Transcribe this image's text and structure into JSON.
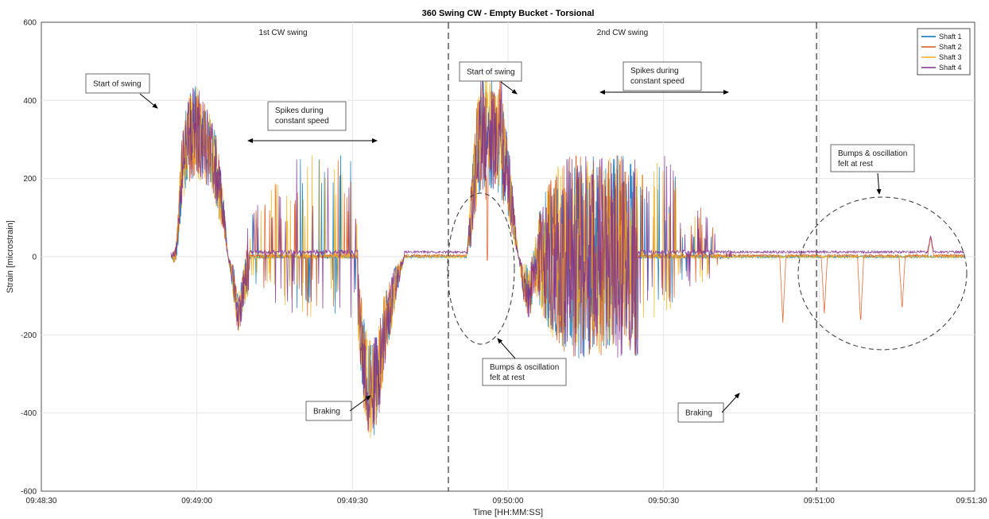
{
  "chart_data": {
    "type": "line",
    "title": "360 Swing CW - Empty Bucket - Torsional",
    "xlabel": "Time [HH:MM:SS]",
    "ylabel": "Strain [microstrain]",
    "x_ticks": [
      "09:48:30",
      "09:49:00",
      "09:49:30",
      "09:50:00",
      "09:50:30",
      "09:51:00",
      "09:51:30"
    ],
    "x_tick_seconds": [
      0,
      30,
      60,
      90,
      120,
      150,
      180
    ],
    "xlim_seconds": [
      0,
      180
    ],
    "ylim": [
      -600,
      600
    ],
    "y_ticks": [
      -600,
      -400,
      -200,
      0,
      200,
      400,
      600
    ],
    "grid": true,
    "legend_position": "top-right",
    "colors": [
      "#0072bd",
      "#d95319",
      "#edb120",
      "#7e2f8e"
    ],
    "series": [
      {
        "name": "Shaft 1",
        "color": "#0072bd"
      },
      {
        "name": "Shaft 2",
        "color": "#d95319"
      },
      {
        "name": "Shaft 3",
        "color": "#edb120"
      },
      {
        "name": "Shaft 4",
        "color": "#7e2f8e"
      }
    ],
    "envelope": {
      "t": [
        25,
        26,
        27,
        28,
        29,
        30,
        31,
        32,
        33,
        34,
        35,
        36,
        37,
        38,
        39,
        40,
        41,
        42,
        43,
        44,
        45,
        46,
        47,
        48,
        49,
        50,
        51,
        52,
        53,
        54,
        55,
        56,
        57,
        58,
        59,
        60,
        61,
        62,
        63,
        64,
        65,
        66,
        67,
        68,
        69,
        70,
        71,
        72,
        73,
        74,
        75,
        76,
        77,
        78,
        79,
        80,
        81,
        82,
        83,
        84,
        85,
        86,
        87,
        88,
        89,
        90,
        91,
        92,
        93,
        94,
        95,
        96,
        97,
        98,
        99,
        100,
        101,
        102,
        103,
        104,
        105,
        106,
        107,
        108,
        109,
        110,
        111,
        112,
        113,
        114,
        115,
        116,
        117,
        118,
        119,
        120,
        121,
        122,
        123,
        124,
        125,
        126,
        127,
        128,
        129,
        130,
        131,
        132,
        133,
        134,
        135,
        136,
        137,
        138,
        139,
        140,
        141,
        142,
        143,
        144,
        145,
        146,
        147,
        148,
        149,
        150,
        151,
        152,
        153,
        154,
        155,
        156,
        157,
        158,
        159,
        160,
        161,
        162,
        163,
        164,
        165,
        166,
        167,
        168,
        169,
        170,
        171,
        172,
        173,
        174,
        175,
        176,
        177,
        178
      ],
      "base": [
        0,
        0,
        200,
        290,
        310,
        320,
        300,
        280,
        250,
        200,
        120,
        0,
        -60,
        -150,
        -80,
        0,
        0,
        0,
        0,
        0,
        0,
        0,
        0,
        0,
        0,
        0,
        0,
        0,
        0,
        0,
        0,
        0,
        0,
        0,
        0,
        0,
        -100,
        -250,
        -330,
        -340,
        -300,
        -200,
        -150,
        -90,
        -40,
        0,
        0,
        0,
        0,
        0,
        0,
        0,
        0,
        0,
        0,
        0,
        0,
        0,
        120,
        260,
        320,
        330,
        310,
        290,
        260,
        200,
        100,
        0,
        -60,
        -100,
        -40,
        0,
        0,
        0,
        0,
        0,
        0,
        0,
        0,
        0,
        0,
        0,
        0,
        0,
        0,
        0,
        0,
        0,
        0,
        0,
        0,
        0,
        0,
        0,
        0,
        0,
        0,
        0,
        -100,
        -230,
        -330,
        -380,
        -350,
        -280,
        -180,
        -80,
        0,
        0,
        0,
        0,
        0,
        0,
        0,
        0,
        0,
        0,
        0,
        0,
        0,
        0,
        0,
        0,
        0,
        0,
        0,
        0,
        0,
        0,
        0,
        0,
        0,
        0,
        0,
        0,
        0,
        0,
        0,
        0,
        0,
        0,
        0,
        0,
        0,
        0,
        0,
        0,
        0,
        0,
        0,
        0,
        0,
        0,
        0,
        0
      ],
      "amp": [
        0,
        30,
        90,
        110,
        120,
        120,
        110,
        100,
        100,
        90,
        60,
        0,
        40,
        60,
        50,
        100,
        120,
        140,
        160,
        180,
        200,
        220,
        240,
        250,
        260,
        260,
        260,
        260,
        260,
        260,
        260,
        260,
        260,
        260,
        260,
        260,
        90,
        120,
        130,
        130,
        120,
        100,
        80,
        60,
        30,
        0,
        0,
        0,
        0,
        0,
        0,
        0,
        0,
        0,
        0,
        0,
        0,
        0,
        90,
        130,
        150,
        150,
        140,
        130,
        120,
        100,
        60,
        0,
        50,
        80,
        60,
        120,
        160,
        200,
        220,
        240,
        250,
        260,
        260,
        260,
        260,
        260,
        260,
        260,
        260,
        260,
        260,
        260,
        260,
        260,
        260,
        260,
        260,
        260,
        260,
        260,
        260,
        260,
        100,
        120,
        130,
        140,
        130,
        110,
        90,
        60,
        0,
        0,
        0,
        0,
        0,
        0,
        0,
        0,
        0,
        0,
        0,
        0,
        0,
        0,
        0,
        0,
        0,
        0,
        0,
        0,
        0,
        0,
        0,
        0,
        0,
        0,
        0,
        0,
        0,
        0,
        0,
        0,
        0,
        0,
        0,
        0,
        0,
        0,
        0,
        0,
        0,
        0,
        0,
        0,
        0,
        0,
        0,
        0
      ]
    },
    "rest_dips": [
      {
        "t": 86.0,
        "value": -225
      },
      {
        "t": 88.5,
        "value": 120
      },
      {
        "t": 143.0,
        "value": -170
      },
      {
        "t": 151.0,
        "value": -150
      },
      {
        "t": 158.0,
        "value": -175
      },
      {
        "t": 166.0,
        "value": -140
      },
      {
        "t": 171.5,
        "value": 45
      }
    ],
    "dividers_seconds": [
      78.5,
      149.5
    ],
    "section_labels": [
      {
        "text": "1st CW swing",
        "t": 40
      },
      {
        "text": "2nd CW swing",
        "t": 123
      }
    ],
    "annotations": [
      {
        "lines": [
          "Start of swing"
        ]
      },
      {
        "lines": [
          "Spikes during",
          "constant speed"
        ]
      },
      {
        "lines": [
          "Start of swing"
        ]
      },
      {
        "lines": [
          "Spikes during",
          "constant speed"
        ]
      },
      {
        "lines": [
          "Bumps & oscillation",
          "felt at rest"
        ]
      },
      {
        "lines": [
          "Bumps & oscillation",
          "felt at rest"
        ]
      },
      {
        "lines": [
          "Braking"
        ]
      },
      {
        "lines": [
          "Braking"
        ]
      }
    ]
  }
}
